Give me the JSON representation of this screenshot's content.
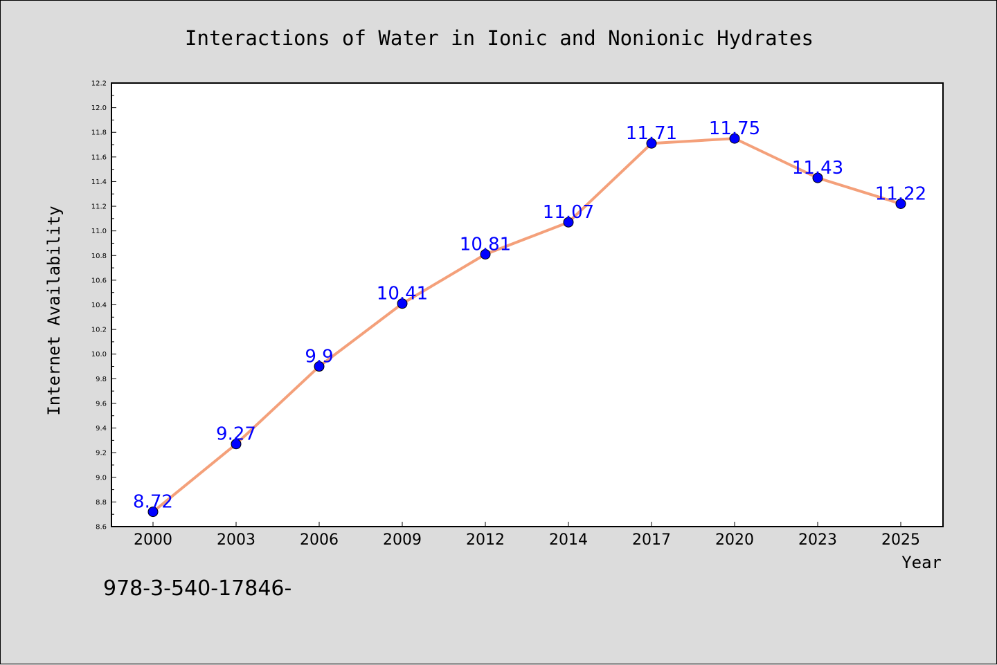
{
  "chart_data": {
    "type": "line",
    "title": "Interactions of Water in Ionic and Nonionic Hydrates",
    "xlabel": "Year",
    "ylabel": "Internet Availability",
    "categories": [
      "2000",
      "2003",
      "2006",
      "2009",
      "2012",
      "2014",
      "2017",
      "2020",
      "2023",
      "2025"
    ],
    "series": [
      {
        "values": [
          8.72,
          9.27,
          9.9,
          10.41,
          10.81,
          11.07,
          11.71,
          11.75,
          11.43,
          11.22
        ],
        "labels": [
          "8.72",
          "9.27",
          "9.9",
          "10.41",
          "10.81",
          "11.07",
          "11.71",
          "11.75",
          "11.43",
          "11.22"
        ],
        "line_color": "#f4a07a",
        "marker_color": "#0000ff",
        "label_color": "#0000ff"
      }
    ],
    "ylim": [
      8.6,
      12.2
    ],
    "yticks": [
      "8.6",
      "8.8",
      "9.0",
      "9.2",
      "9.4",
      "9.6",
      "9.8",
      "10.0",
      "10.2",
      "10.4",
      "10.6",
      "10.8",
      "11.0",
      "11.2",
      "11.4",
      "11.6",
      "11.8",
      "12.0",
      "12.2"
    ],
    "grid": false,
    "legend": "none"
  },
  "footnote": "978-3-540-17846-"
}
